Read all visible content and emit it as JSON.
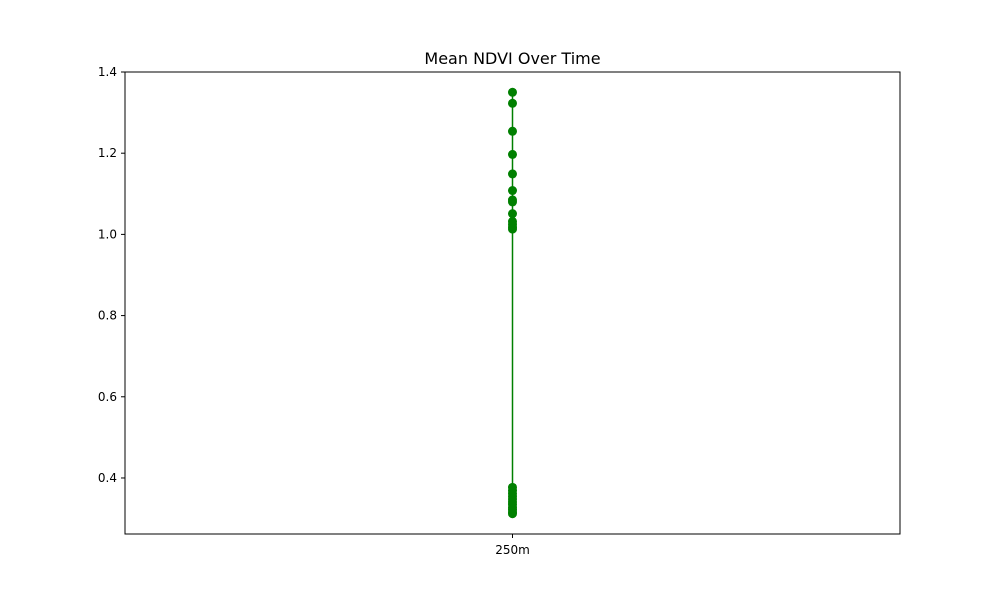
{
  "chart_data": {
    "type": "line",
    "title": "Mean NDVI Over Time",
    "xlabel": "",
    "ylabel": "",
    "categories": [
      "250m"
    ],
    "x": [
      "250m",
      "250m",
      "250m",
      "250m",
      "250m",
      "250m",
      "250m",
      "250m",
      "250m",
      "250m",
      "250m",
      "250m",
      "250m",
      "250m",
      "250m",
      "250m",
      "250m",
      "250m",
      "250m",
      "250m",
      "250m",
      "250m",
      "250m",
      "250m"
    ],
    "series": [
      {
        "values": [
          1.35,
          1.323,
          1.254,
          1.197,
          1.149,
          1.108,
          1.085,
          1.08,
          1.051,
          1.032,
          1.025,
          1.018,
          1.013,
          0.377,
          0.369,
          0.362,
          0.355,
          0.348,
          0.341,
          0.335,
          0.328,
          0.322,
          0.316,
          0.312
        ],
        "color": "#008000"
      }
    ],
    "ylim": [
      0.262,
      1.4
    ],
    "yticks": [
      "0.4",
      "0.6",
      "0.8",
      "1.0",
      "1.2",
      "1.4"
    ],
    "grid": false,
    "legend": "none"
  }
}
